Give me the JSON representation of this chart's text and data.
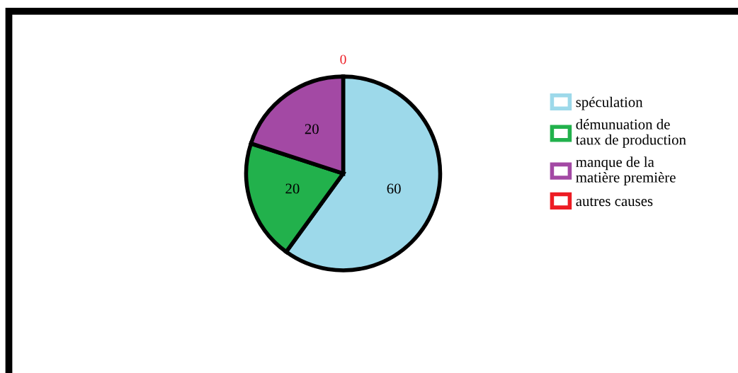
{
  "chart_data": {
    "type": "pie",
    "categories": [
      "spéculation",
      "démunuation de\ntaux de production",
      "manque de la\nmatière première",
      "autres causes"
    ],
    "values": [
      60,
      20,
      20,
      0
    ],
    "colors": [
      "#9dd9ea",
      "#22b14c",
      "#a349a4",
      "#ed1c24"
    ],
    "value_labels": [
      "60",
      "20",
      "20",
      "0"
    ],
    "legend": "right"
  }
}
